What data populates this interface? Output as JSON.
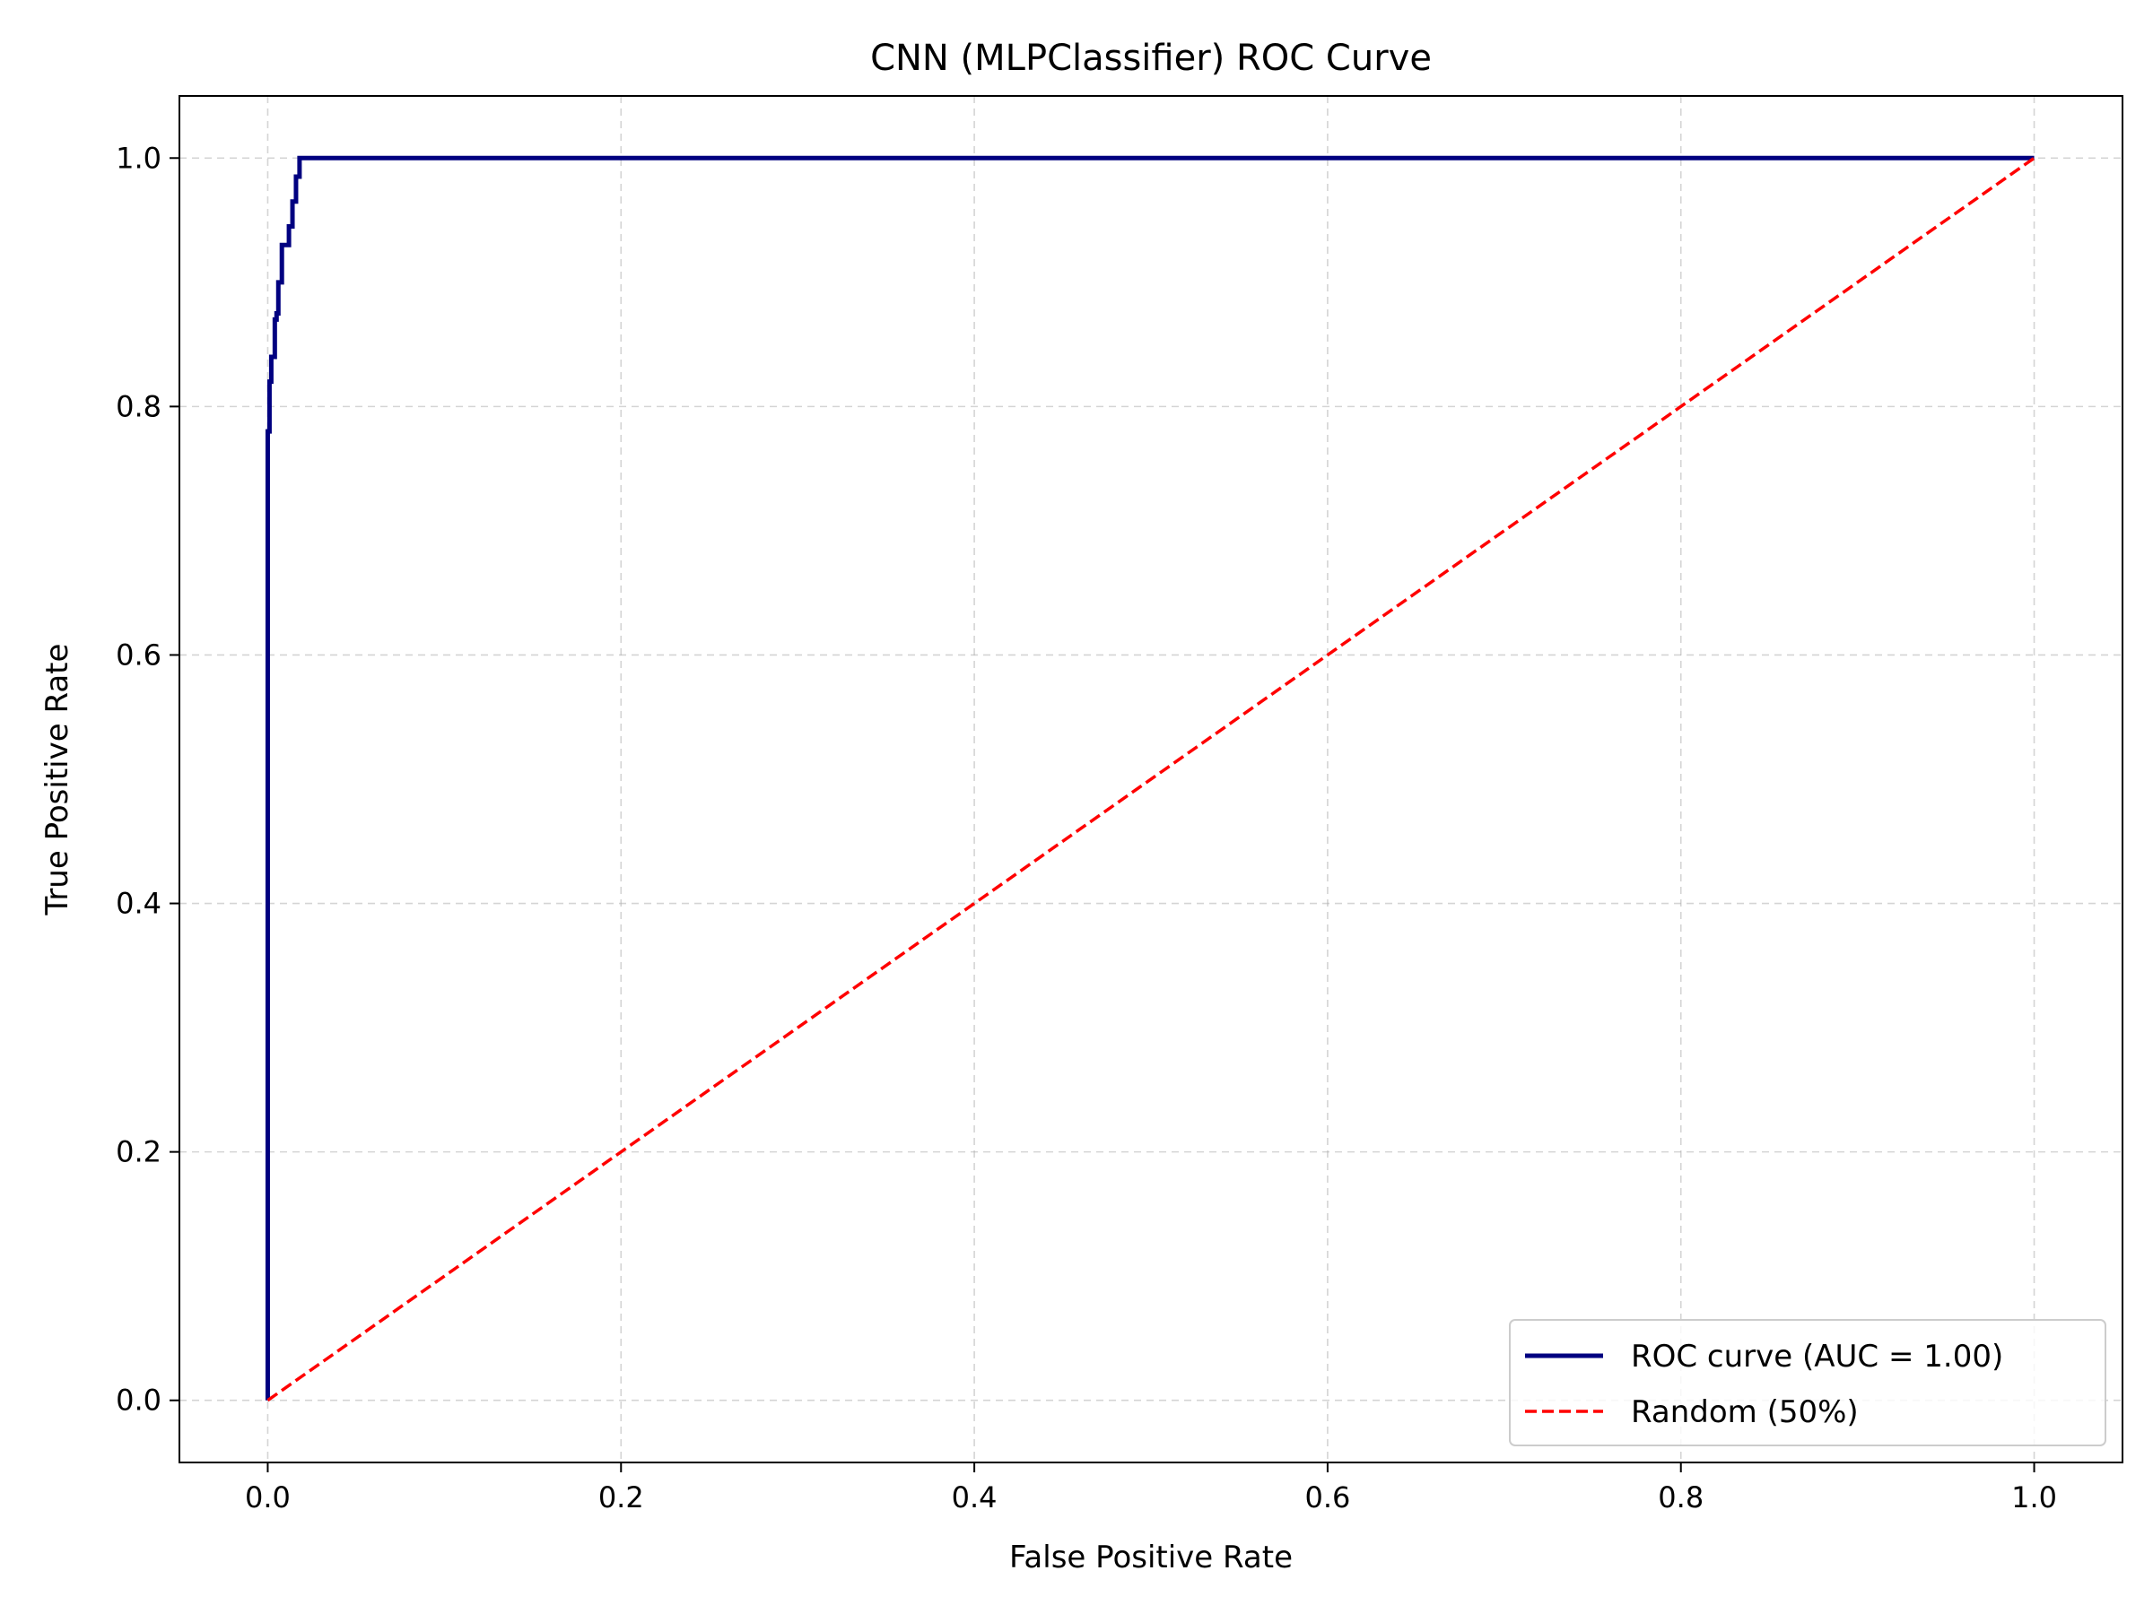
{
  "chart_data": {
    "type": "line",
    "title": "CNN (MLPClassifier) ROC Curve",
    "xlabel": "False Positive Rate",
    "ylabel": "True Positive Rate",
    "xlim": [
      -0.05,
      1.05
    ],
    "ylim": [
      -0.05,
      1.05
    ],
    "xticks": [
      0.0,
      0.2,
      0.4,
      0.6,
      0.8,
      1.0
    ],
    "yticks": [
      0.0,
      0.2,
      0.4,
      0.6,
      0.8,
      1.0
    ],
    "grid": true,
    "legend_position": "bottom-right",
    "series": [
      {
        "name": "ROC curve (AUC = 1.00)",
        "color": "#000080",
        "style": "solid",
        "x": [
          0.0,
          0.0,
          0.001,
          0.001,
          0.002,
          0.002,
          0.004,
          0.004,
          0.005,
          0.005,
          0.006,
          0.006,
          0.008,
          0.008,
          0.009,
          0.009,
          0.012,
          0.012,
          0.014,
          0.014,
          0.016,
          0.016,
          0.018,
          0.018,
          1.0
        ],
        "y": [
          0.0,
          0.78,
          0.78,
          0.82,
          0.82,
          0.84,
          0.84,
          0.87,
          0.87,
          0.875,
          0.875,
          0.9,
          0.9,
          0.93,
          0.93,
          0.93,
          0.93,
          0.945,
          0.945,
          0.965,
          0.965,
          0.985,
          0.985,
          1.0,
          1.0
        ]
      },
      {
        "name": "Random (50%)",
        "color": "#ff0000",
        "style": "dashed",
        "x": [
          0.0,
          1.0
        ],
        "y": [
          0.0,
          1.0
        ]
      }
    ]
  }
}
